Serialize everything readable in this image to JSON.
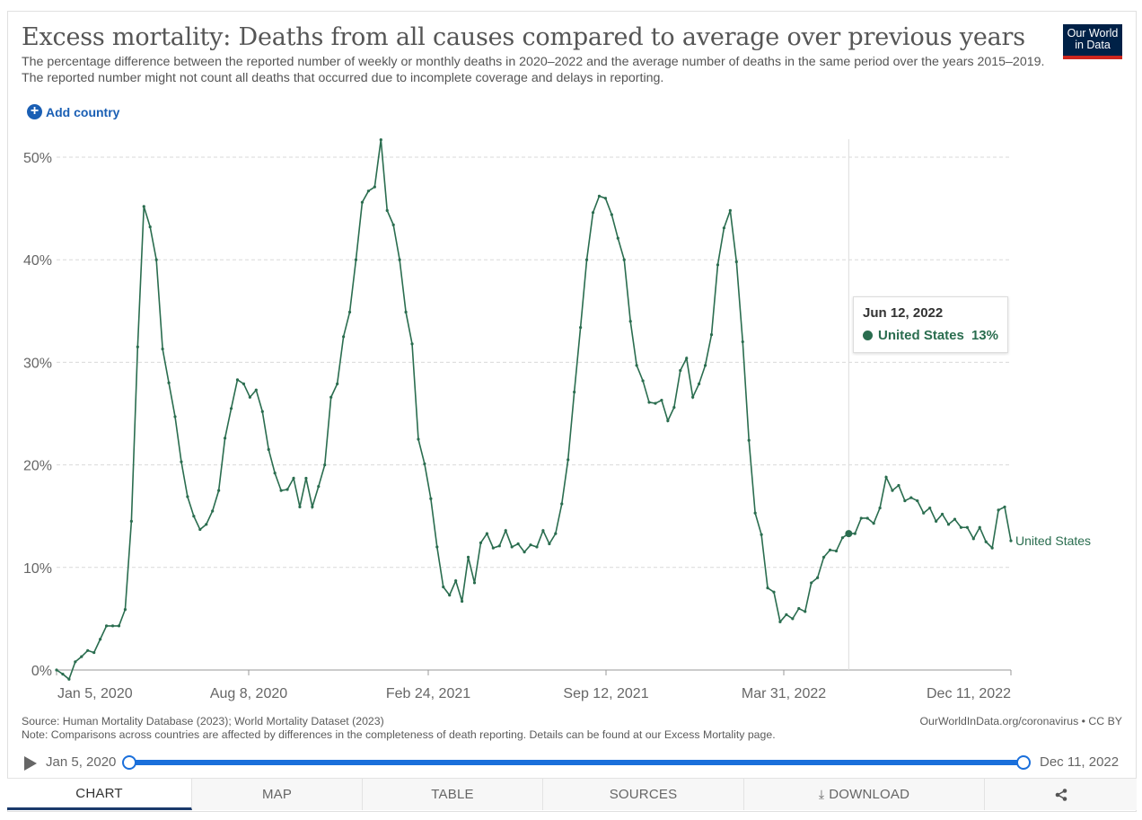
{
  "header": {
    "title": "Excess mortality: Deaths from all causes compared to average over previous years",
    "subtitle": "The percentage difference between the reported number of weekly or monthly deaths in 2020–2022 and the average number of deaths in the same period over the years 2015–2019. The reported number might not count all deaths that occurred due to incomplete coverage and delays in reporting.",
    "logo_line1": "Our World",
    "logo_line2": "in Data"
  },
  "controls": {
    "add_country_label": "Add country",
    "add_icon": "plus-circle-icon"
  },
  "tooltip": {
    "date": "Jun 12, 2022",
    "series": "United States",
    "value": "13%"
  },
  "footer": {
    "source": "Source: Human Mortality Database (2023); World Mortality Dataset (2023)",
    "note": "Note: Comparisons across countries are affected by differences in the completeness of death reporting. Details can be found at our Excess Mortality page.",
    "credit": "OurWorldInData.org/coronavirus • CC BY"
  },
  "timeline": {
    "start_label": "Jan 5, 2020",
    "end_label": "Dec 11, 2022",
    "play_icon": "play-icon"
  },
  "tabs": [
    {
      "label": "CHART",
      "active": true
    },
    {
      "label": "MAP"
    },
    {
      "label": "TABLE"
    },
    {
      "label": "SOURCES"
    },
    {
      "label": "DOWNLOAD",
      "icon": "download-icon"
    },
    {
      "label": "",
      "icon": "share-icon"
    }
  ],
  "colors": {
    "series": "#2a6d4f",
    "accent": "#1a6fdb",
    "title": "#555555"
  },
  "chart_data": {
    "type": "line",
    "title": "Excess mortality: Deaths from all causes compared to average over previous years",
    "xlabel": "",
    "ylabel": "",
    "ylim": [
      0,
      52
    ],
    "y_ticks": [
      "0%",
      "10%",
      "20%",
      "30%",
      "40%",
      "50%"
    ],
    "x_ticks": [
      "Jan 5, 2020",
      "Aug 8, 2020",
      "Feb 24, 2021",
      "Sep 12, 2021",
      "Mar 31, 2022",
      "Dec 11, 2022"
    ],
    "grid": true,
    "series": [
      {
        "name": "United States",
        "values": [
          0,
          -0.4,
          -0.9,
          0.8,
          1.3,
          1.9,
          1.7,
          3.0,
          4.3,
          4.3,
          4.3,
          5.9,
          14.5,
          31.5,
          45.2,
          43.2,
          40.0,
          31.3,
          28.0,
          24.7,
          20.3,
          16.9,
          15.0,
          13.7,
          14.2,
          15.5,
          17.5,
          22.6,
          25.5,
          28.3,
          27.9,
          26.6,
          27.3,
          25.2,
          21.5,
          19.2,
          17.5,
          17.6,
          18.7,
          15.9,
          18.7,
          15.9,
          17.9,
          20.0,
          26.6,
          27.9,
          32.5,
          34.9,
          40.0,
          45.6,
          46.7,
          47.1,
          51.7,
          44.8,
          43.4,
          40.0,
          34.9,
          31.8,
          22.5,
          20.1,
          16.7,
          12.0,
          8.1,
          7.3,
          8.7,
          6.7,
          11.0,
          8.5,
          12.4,
          13.3,
          11.9,
          12.1,
          13.6,
          12.0,
          12.3,
          11.5,
          12.2,
          12.0,
          13.6,
          12.3,
          13.3,
          16.2,
          20.5,
          27.1,
          33.4,
          40.0,
          44.6,
          46.2,
          46.0,
          44.4,
          42.1,
          40.0,
          34.0,
          29.7,
          28.2,
          26.1,
          26.0,
          26.3,
          24.3,
          25.6,
          29.2,
          30.4,
          26.6,
          27.9,
          29.7,
          32.7,
          39.5,
          43.1,
          44.8,
          39.8,
          32.0,
          22.4,
          15.3,
          13.2,
          8.0,
          7.6,
          4.7,
          5.4,
          5.0,
          6.0,
          5.7,
          8.5,
          9.0,
          11.0,
          11.7,
          11.6,
          12.9,
          13.3,
          13.3,
          14.8,
          14.8,
          14.3,
          15.8,
          18.8,
          17.5,
          18.0,
          16.5,
          16.8,
          16.5,
          15.3,
          15.8,
          14.5,
          15.2,
          14.2,
          14.7,
          13.9,
          13.9,
          12.8,
          13.9,
          12.5,
          11.9,
          15.6,
          15.9,
          12.6
        ]
      }
    ],
    "hover": {
      "date": "Jun 12, 2022",
      "value": 13
    }
  }
}
